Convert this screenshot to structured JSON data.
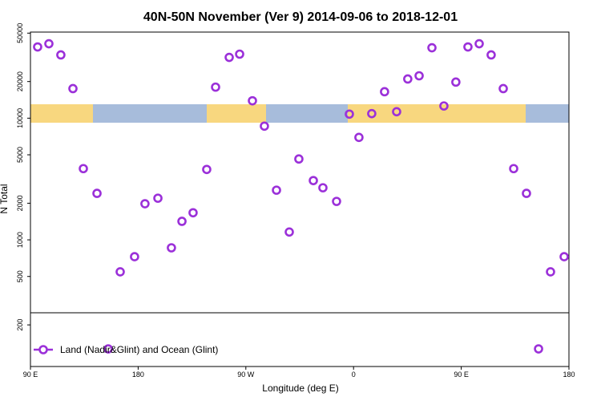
{
  "chart_data": {
    "type": "scatter",
    "title": "40N-50N November (Ver 9)   2014-09-06 to 2018-12-01",
    "x_label": "Longitude (deg E)",
    "y_label": "N Total",
    "log_y": true,
    "xlim": [
      90,
      540
    ],
    "xticks": [
      {
        "value": 90,
        "label": "90 E"
      },
      {
        "value": 180,
        "label": "180"
      },
      {
        "value": 270,
        "label": "90 W"
      },
      {
        "value": 360,
        "label": "0"
      },
      {
        "value": 450,
        "label": "90 E"
      },
      {
        "value": 540,
        "label": "180"
      }
    ],
    "ylim": [
      91,
      51000
    ],
    "yticks": [
      200,
      500,
      1000,
      2000,
      5000,
      10000,
      20000,
      50000
    ],
    "series": [
      {
        "name": "Land (Nadir&Glint) and Ocean (Glint)",
        "color": "#9b30d9",
        "x": [
          96.0,
          105.4,
          115.4,
          125.5,
          134.2,
          145.6,
          155.0,
          165.0,
          177.0,
          185.7,
          196.5,
          207.8,
          216.6,
          225.9,
          237.3,
          244.7,
          256.1,
          264.8,
          275.5,
          285.5,
          295.6,
          306.3,
          314.3,
          326.4,
          334.4,
          345.8,
          356.5,
          364.5,
          375.2,
          385.9,
          396.0,
          405.3,
          414.8,
          425.5,
          435.5,
          445.5,
          455.6,
          465.0,
          475.0,
          485.1,
          493.8,
          504.5,
          514.6,
          524.6,
          536.0
        ],
        "values": [
          38500,
          40900,
          33100,
          17500,
          3850,
          2410,
          127,
          546,
          727,
          1980,
          2200,
          860,
          1420,
          1670,
          3790,
          18000,
          31600,
          33600,
          13900,
          8600,
          2560,
          1160,
          4620,
          3070,
          2680,
          2070,
          10800,
          6950,
          10900,
          16500,
          11300,
          21000,
          22300,
          37900,
          12600,
          19800,
          38500,
          40900,
          33100,
          17500,
          3850,
          2410,
          127,
          546,
          727
        ]
      }
    ]
  }
}
